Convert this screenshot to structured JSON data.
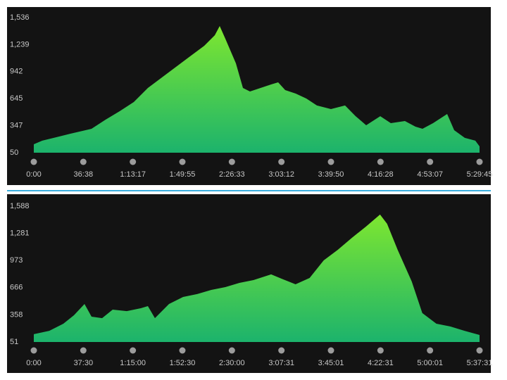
{
  "chart_data": [
    {
      "type": "area",
      "x": [
        0,
        375,
        1000,
        1625,
        2563,
        3188,
        3813,
        4438,
        5063,
        5688,
        6313,
        6938,
        7563,
        8032,
        8251,
        8501,
        8970,
        9283,
        9596,
        10064,
        10533,
        10846,
        11159,
        11627,
        12096,
        12565,
        13190,
        13815,
        14284,
        14753,
        15378,
        15847,
        16472,
        16941,
        17253,
        17722,
        18347,
        18659,
        19128,
        19597,
        19785
      ],
      "values": [
        143,
        182,
        220,
        259,
        313,
        414,
        507,
        607,
        762,
        878,
        994,
        1110,
        1226,
        1342,
        1443,
        1304,
        1033,
        762,
        723,
        762,
        801,
        824,
        739,
        700,
        646,
        569,
        530,
        569,
        452,
        352,
        452,
        375,
        398,
        336,
        313,
        375,
        476,
        298,
        213,
        182,
        120
      ],
      "gradient": [
        "#84ea2c",
        "#1cb36c"
      ],
      "xlim": [
        0,
        19785
      ],
      "ylim": [
        50,
        1536
      ],
      "xticks": [
        {
          "value": 0,
          "label": "0:00"
        },
        {
          "value": 2198,
          "label": "36:38"
        },
        {
          "value": 4397,
          "label": "1:13:17"
        },
        {
          "value": 6595,
          "label": "1:49:55"
        },
        {
          "value": 8793,
          "label": "2:26:33"
        },
        {
          "value": 10992,
          "label": "3:03:12"
        },
        {
          "value": 13190,
          "label": "3:39:50"
        },
        {
          "value": 15388,
          "label": "4:16:28"
        },
        {
          "value": 17587,
          "label": "4:53:07"
        },
        {
          "value": 19785,
          "label": "5:29:45"
        }
      ],
      "yticks": [
        50,
        {
          "value": 347,
          "label": "347"
        },
        {
          "value": 645,
          "label": "645"
        },
        {
          "value": 942,
          "label": "942"
        },
        {
          "value": 1239,
          "label": "1,239"
        },
        {
          "value": 1536,
          "label": "1,536"
        }
      ]
    },
    {
      "type": "area",
      "x": [
        0,
        704,
        1344,
        1824,
        2303,
        2623,
        3103,
        3583,
        4223,
        4863,
        5182,
        5502,
        6142,
        6782,
        7422,
        8062,
        8701,
        9341,
        9981,
        10781,
        11251,
        11891,
        12531,
        13171,
        13811,
        14451,
        15091,
        15731,
        16051,
        16531,
        17170,
        17650,
        18290,
        18930,
        19570,
        20251
      ],
      "values": [
        139,
        178,
        258,
        354,
        481,
        338,
        321,
        417,
        401,
        433,
        457,
        321,
        481,
        561,
        593,
        640,
        672,
        720,
        752,
        816,
        768,
        704,
        776,
        975,
        1094,
        1230,
        1357,
        1493,
        1389,
        1094,
        736,
        378,
        258,
        226,
        178,
        131
      ],
      "gradient": [
        "#84ea2c",
        "#1cb36c"
      ],
      "xlim": [
        0,
        20251
      ],
      "ylim": [
        51,
        1588
      ],
      "xticks": [
        {
          "value": 0,
          "label": "0:00"
        },
        {
          "value": 2250,
          "label": "37:30"
        },
        {
          "value": 4500,
          "label": "1:15:00"
        },
        {
          "value": 6750,
          "label": "1:52:30"
        },
        {
          "value": 9000,
          "label": "2:30:00"
        },
        {
          "value": 11251,
          "label": "3:07:31"
        },
        {
          "value": 13501,
          "label": "3:45:01"
        },
        {
          "value": 15751,
          "label": "4:22:31"
        },
        {
          "value": 18001,
          "label": "5:00:01"
        },
        {
          "value": 20251,
          "label": "5:37:31"
        }
      ],
      "yticks": [
        51,
        358,
        666,
        973,
        {
          "value": 1281,
          "label": "1,281"
        },
        {
          "value": 1588,
          "label": "1,588"
        }
      ]
    }
  ]
}
